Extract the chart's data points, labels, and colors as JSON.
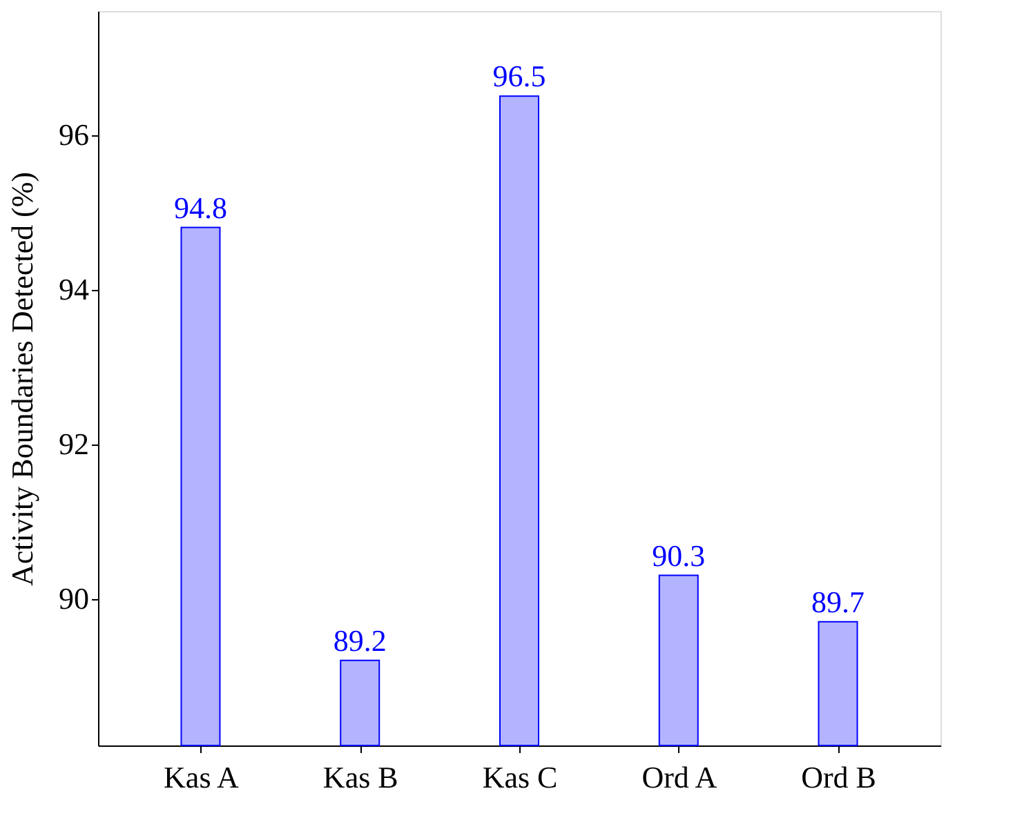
{
  "chart_data": {
    "type": "bar",
    "ylabel": "Activity Boundaries Detected (%)",
    "categories": [
      "Kas A",
      "Kas B",
      "Kas C",
      "Ord A",
      "Ord B"
    ],
    "values": [
      94.8,
      89.2,
      96.5,
      90.3,
      89.7
    ],
    "color": "#b3b3ff",
    "ylim": [
      88.1,
      97.6
    ],
    "yticks": [
      90,
      92,
      94,
      96
    ],
    "data_labels": true,
    "grid": false
  }
}
